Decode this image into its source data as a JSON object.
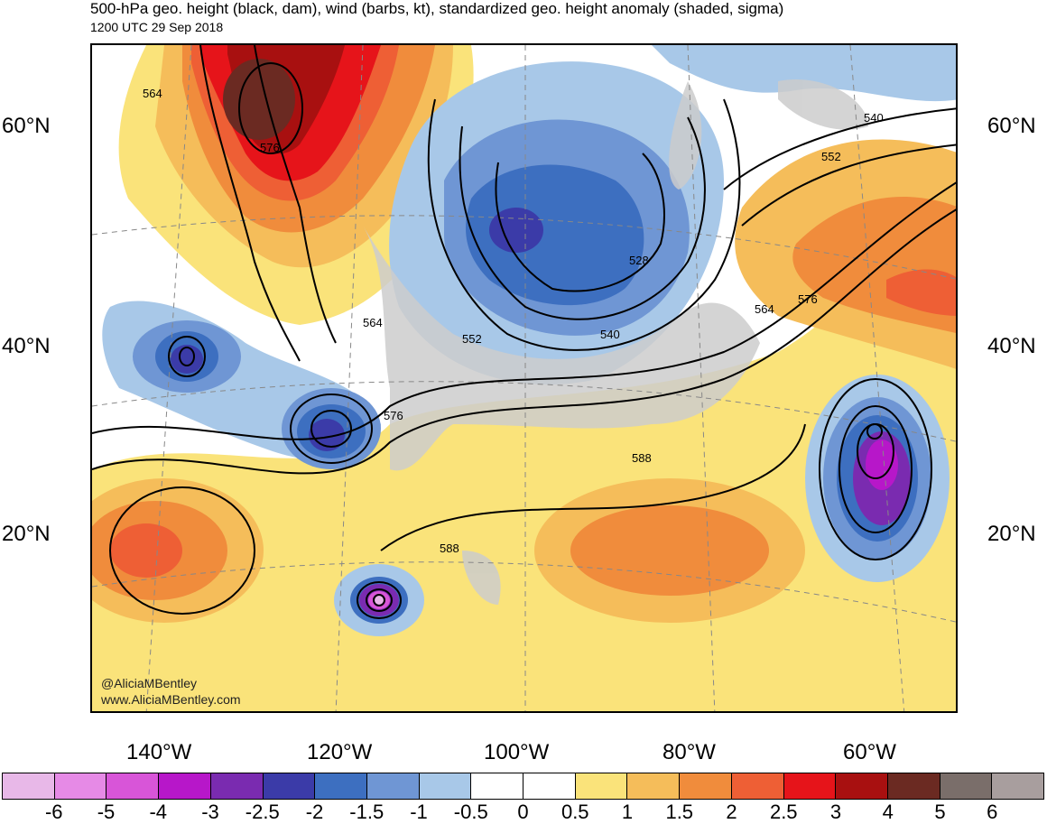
{
  "title": {
    "line1": "500-hPa geo. height (black, dam), wind (barbs, kt), standardized geo. height anomaly (shaded, sigma)",
    "line2": "1200 UTC 29 Sep 2018"
  },
  "credits": {
    "handle": "@AliciaMBentley",
    "website": "www.AliciaMBentley.com"
  },
  "lat_labels": [
    "60°N",
    "40°N",
    "20°N"
  ],
  "lon_labels": [
    "140°W",
    "120°W",
    "100°W",
    "80°W",
    "60°W"
  ],
  "height_contour_labels": [
    "564",
    "576",
    "564",
    "576",
    "588",
    "588",
    "552",
    "540",
    "528",
    "552",
    "540",
    "564",
    "576"
  ],
  "colorbar": {
    "labels": [
      "-6",
      "-5",
      "-4",
      "-3",
      "-2.5",
      "-2",
      "-1.5",
      "-1",
      "-0.5",
      "0",
      "0.5",
      "1",
      "1.5",
      "2",
      "2.5",
      "3",
      "4",
      "5",
      "6"
    ],
    "colors": [
      "#e8b8e8",
      "#e68ae6",
      "#d855d8",
      "#b717c9",
      "#7a2bb0",
      "#3b3ba8",
      "#3d6fc0",
      "#6f96d4",
      "#a8c8e8",
      "#ffffff",
      "#ffffff",
      "#fae37a",
      "#f5bd5a",
      "#f08c3c",
      "#ee5f35",
      "#e6141a",
      "#a81010",
      "#6b2a22",
      "#7a6e6a",
      "#a89e9e"
    ]
  },
  "colors": {
    "continents": "#cccccc",
    "contours": "#000000"
  }
}
